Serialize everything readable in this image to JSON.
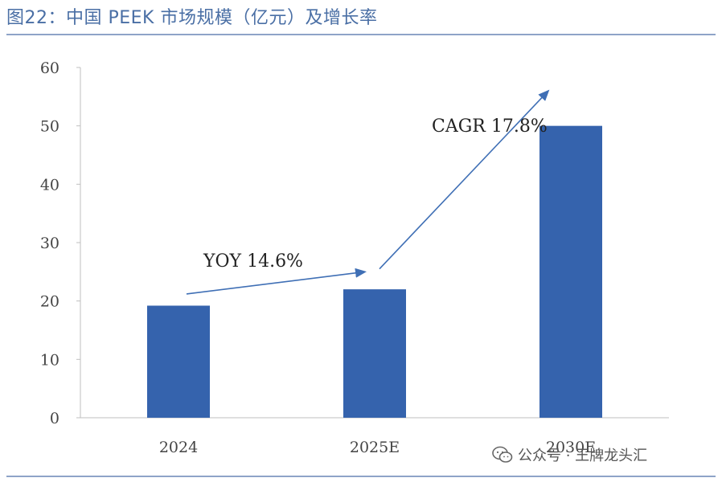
{
  "figure_title": "图22：中国 PEEK 市场规模（亿元）及增长率",
  "source_mark": "公众号 · 王牌龙头汇",
  "colors": {
    "bar": "#3563ad",
    "title": "#4a6fa5",
    "rule": "#8ea3c8",
    "arrow": "#3f6fb5",
    "text": "#222222"
  },
  "chart_data": {
    "type": "bar",
    "categories": [
      "2024",
      "2025E",
      "2030E"
    ],
    "values": [
      19.2,
      22,
      50
    ],
    "ylim": [
      0,
      60
    ],
    "yticks": [
      0,
      10,
      20,
      30,
      40,
      50,
      60
    ],
    "grid": false,
    "annotations": [
      {
        "text": "YOY 14.6%",
        "from": [
          "2024",
          21.2
        ],
        "to": [
          "2025E",
          25.0
        ]
      },
      {
        "text": "CAGR 17.8%",
        "from": [
          "2025E",
          25.5
        ],
        "to": [
          "2030E",
          56.0
        ]
      }
    ]
  }
}
